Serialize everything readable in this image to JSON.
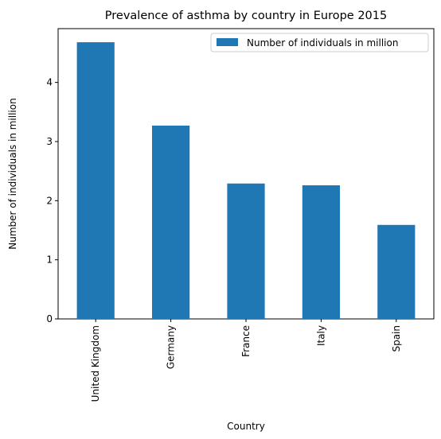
{
  "chart_data": {
    "type": "bar",
    "title": "Prevalence of asthma by country in Europe 2015",
    "xlabel": "Country",
    "ylabel": "Number of individuals in million",
    "categories": [
      "United Kingdom",
      "Germany",
      "France",
      "Italy",
      "Spain"
    ],
    "series": [
      {
        "name": "Number of individuals in million",
        "values": [
          4.68,
          3.27,
          2.29,
          2.26,
          1.59
        ]
      }
    ],
    "ylim": [
      0,
      4.91
    ],
    "yticks": [
      0,
      1,
      2,
      3,
      4
    ],
    "grid": false,
    "legend_position": "top-right",
    "bar_color": "#1f77b4"
  }
}
